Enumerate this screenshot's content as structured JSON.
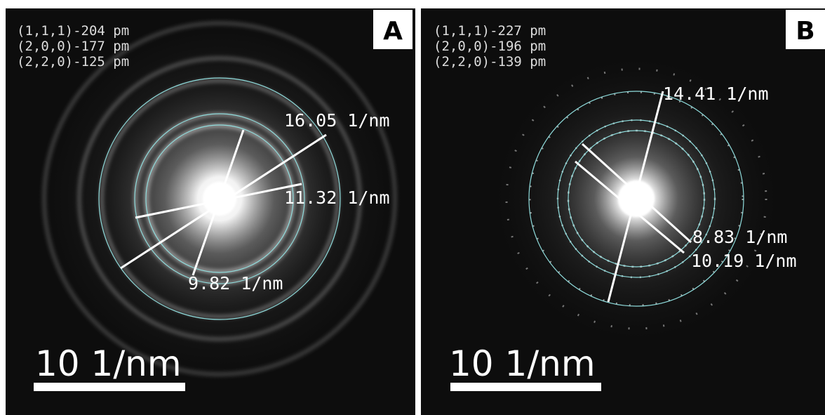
{
  "panels": [
    {
      "label": "A",
      "d_spacings": [
        "(1,1,1)-204 pm",
        "(2,0,0)-177 pm",
        "(2,2,0)-125 pm"
      ],
      "ring_labels": [
        "16.05 1/nm",
        "11.32 1/nm",
        "9.82 1/nm"
      ],
      "scale_bar": "10 1/nm"
    },
    {
      "label": "B",
      "d_spacings": [
        "(1,1,1)-227 pm",
        "(2,0,0)-196 pm",
        "(2,2,0)-139 pm"
      ],
      "ring_labels": [
        "14.41 1/nm",
        "8.83 1/nm",
        "10.19 1/nm"
      ],
      "scale_bar": "10 1/nm"
    }
  ]
}
